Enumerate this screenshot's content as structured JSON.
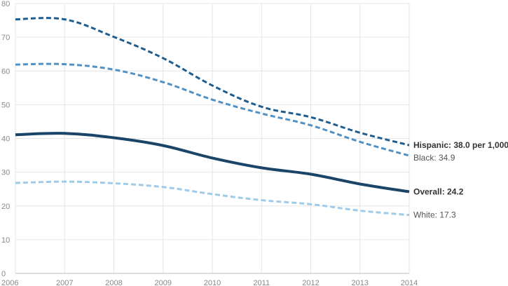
{
  "chart_data": {
    "type": "line",
    "x": [
      2006,
      2007,
      2008,
      2009,
      2010,
      2011,
      2012,
      2013,
      2014
    ],
    "x_tick_labels": [
      "2006",
      "2007",
      "2008",
      "2009",
      "2010",
      "2011",
      "2012",
      "2013",
      "2014"
    ],
    "y_tick_labels": [
      "0",
      "10",
      "20",
      "30",
      "40",
      "50",
      "60",
      "70",
      "80"
    ],
    "xlim": [
      2006,
      2014
    ],
    "ylim": [
      0,
      80
    ],
    "grid": true,
    "series": [
      {
        "name": "Hispanic",
        "end_label": "Hispanic: 38.0 per 1,000",
        "values": [
          75.3,
          75.3,
          70.1,
          63.8,
          55.7,
          49.4,
          46.3,
          41.7,
          38.0
        ],
        "color": "#1f5d8f",
        "style": "dashed"
      },
      {
        "name": "Black",
        "end_label": "Black: 34.9",
        "values": [
          61.9,
          62.0,
          60.4,
          56.7,
          51.5,
          47.4,
          43.9,
          39.0,
          34.9
        ],
        "color": "#5291c4",
        "style": "dashed"
      },
      {
        "name": "Overall",
        "end_label": "Overall: 24.2",
        "values": [
          41.1,
          41.5,
          40.2,
          37.9,
          34.2,
          31.3,
          29.4,
          26.5,
          24.2
        ],
        "color": "#1a4468",
        "style": "solid"
      },
      {
        "name": "White",
        "end_label": "White: 17.3",
        "values": [
          26.8,
          27.2,
          26.7,
          25.6,
          23.5,
          21.7,
          20.5,
          18.6,
          17.3
        ],
        "color": "#9fcbe8",
        "style": "dashed"
      }
    ]
  }
}
